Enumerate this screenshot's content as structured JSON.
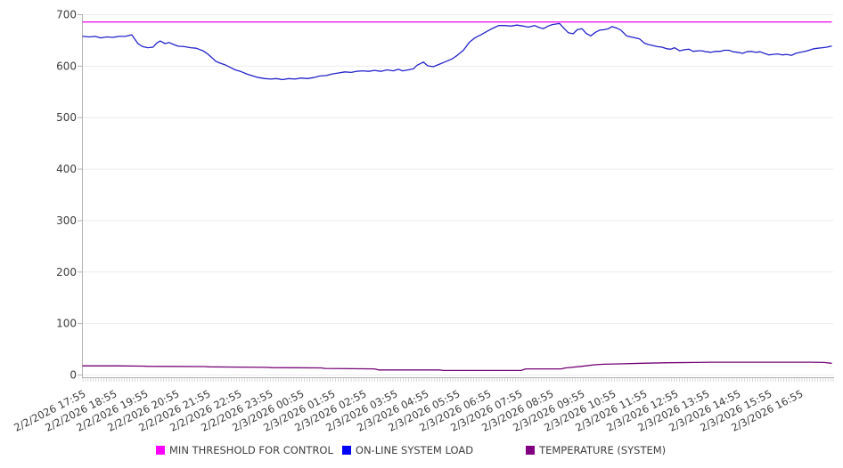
{
  "chart_data": {
    "type": "line",
    "title": "",
    "grid": "horizontal-only",
    "legend_position": "bottom",
    "x_axis": {
      "span_minutes": 1440,
      "minor_tick_count": 288,
      "labels": [
        "2/2/2026 17:55",
        "2/2/2026 18:55",
        "2/2/2026 19:55",
        "2/2/2026 20:55",
        "2/2/2026 21:55",
        "2/2/2026 22:55",
        "2/2/2026 23:55",
        "2/3/2026 00:55",
        "2/3/2026 01:55",
        "2/3/2026 02:55",
        "2/3/2026 03:55",
        "2/3/2026 04:55",
        "2/3/2026 05:55",
        "2/3/2026 06:55",
        "2/3/2026 07:55",
        "2/3/2026 08:55",
        "2/3/2026 09:55",
        "2/3/2026 10:55",
        "2/3/2026 11:55",
        "2/3/2026 12:55",
        "2/3/2026 13:55",
        "2/3/2026 14:55",
        "2/3/2026 15:55",
        "2/3/2026 16:55"
      ]
    },
    "y_axis": {
      "min": 0,
      "max": 700,
      "tick_step": 100,
      "tick_values": [
        700,
        600,
        500,
        400,
        300,
        200,
        100,
        0
      ]
    },
    "series": [
      {
        "name": "MIN THRESHOLD FOR CONTROL",
        "swatch_color": "#ff00ff",
        "line_color": "#ee1cee",
        "points": [
          [
            0,
            685
          ],
          [
            1440,
            685
          ]
        ]
      },
      {
        "name": "ON-LINE SYSTEM LOAD",
        "swatch_color": "#0000ff",
        "line_color": "#2323cb",
        "points": [
          [
            0,
            657
          ],
          [
            12,
            656
          ],
          [
            24,
            657
          ],
          [
            34,
            654
          ],
          [
            46,
            656
          ],
          [
            58,
            655
          ],
          [
            70,
            657
          ],
          [
            82,
            657
          ],
          [
            94,
            660
          ],
          [
            101,
            650
          ],
          [
            106,
            643
          ],
          [
            115,
            637
          ],
          [
            125,
            635
          ],
          [
            135,
            636
          ],
          [
            142,
            644
          ],
          [
            149,
            648
          ],
          [
            158,
            643
          ],
          [
            166,
            645
          ],
          [
            175,
            641
          ],
          [
            183,
            638
          ],
          [
            195,
            637
          ],
          [
            207,
            635
          ],
          [
            218,
            634
          ],
          [
            231,
            629
          ],
          [
            240,
            623
          ],
          [
            249,
            615
          ],
          [
            255,
            609
          ],
          [
            264,
            605
          ],
          [
            273,
            602
          ],
          [
            283,
            597
          ],
          [
            293,
            592
          ],
          [
            303,
            589
          ],
          [
            315,
            584
          ],
          [
            327,
            580
          ],
          [
            338,
            577
          ],
          [
            350,
            575
          ],
          [
            362,
            574
          ],
          [
            372,
            575
          ],
          [
            384,
            573
          ],
          [
            396,
            575
          ],
          [
            408,
            574
          ],
          [
            420,
            576
          ],
          [
            432,
            575
          ],
          [
            444,
            577
          ],
          [
            456,
            580
          ],
          [
            468,
            581
          ],
          [
            480,
            584
          ],
          [
            492,
            586
          ],
          [
            504,
            588
          ],
          [
            516,
            587
          ],
          [
            526,
            589
          ],
          [
            538,
            590
          ],
          [
            550,
            589
          ],
          [
            561,
            591
          ],
          [
            573,
            589
          ],
          [
            585,
            592
          ],
          [
            597,
            590
          ],
          [
            607,
            593
          ],
          [
            615,
            590
          ],
          [
            626,
            592
          ],
          [
            636,
            594
          ],
          [
            643,
            601
          ],
          [
            655,
            607
          ],
          [
            663,
            600
          ],
          [
            674,
            598
          ],
          [
            686,
            603
          ],
          [
            698,
            608
          ],
          [
            710,
            613
          ],
          [
            720,
            620
          ],
          [
            732,
            630
          ],
          [
            744,
            646
          ],
          [
            754,
            654
          ],
          [
            766,
            660
          ],
          [
            778,
            667
          ],
          [
            789,
            673
          ],
          [
            800,
            678
          ],
          [
            812,
            678
          ],
          [
            823,
            677
          ],
          [
            835,
            679
          ],
          [
            847,
            677
          ],
          [
            857,
            675
          ],
          [
            869,
            678
          ],
          [
            878,
            674
          ],
          [
            886,
            672
          ],
          [
            895,
            677
          ],
          [
            903,
            680
          ],
          [
            917,
            682
          ],
          [
            926,
            672
          ],
          [
            934,
            664
          ],
          [
            943,
            662
          ],
          [
            951,
            670
          ],
          [
            960,
            672
          ],
          [
            968,
            663
          ],
          [
            977,
            658
          ],
          [
            986,
            665
          ],
          [
            994,
            669
          ],
          [
            1003,
            670
          ],
          [
            1011,
            672
          ],
          [
            1018,
            676
          ],
          [
            1027,
            673
          ],
          [
            1035,
            669
          ],
          [
            1046,
            658
          ],
          [
            1054,
            656
          ],
          [
            1063,
            654
          ],
          [
            1071,
            652
          ],
          [
            1080,
            644
          ],
          [
            1088,
            641
          ],
          [
            1097,
            639
          ],
          [
            1105,
            637
          ],
          [
            1114,
            636
          ],
          [
            1123,
            633
          ],
          [
            1131,
            632
          ],
          [
            1138,
            635
          ],
          [
            1148,
            629
          ],
          [
            1157,
            631
          ],
          [
            1166,
            632
          ],
          [
            1174,
            628
          ],
          [
            1183,
            629
          ],
          [
            1191,
            629
          ],
          [
            1200,
            627
          ],
          [
            1208,
            626
          ],
          [
            1217,
            628
          ],
          [
            1226,
            628
          ],
          [
            1234,
            630
          ],
          [
            1243,
            630
          ],
          [
            1251,
            627
          ],
          [
            1260,
            626
          ],
          [
            1269,
            624
          ],
          [
            1277,
            627
          ],
          [
            1286,
            628
          ],
          [
            1294,
            626
          ],
          [
            1303,
            627
          ],
          [
            1311,
            624
          ],
          [
            1320,
            621
          ],
          [
            1328,
            622
          ],
          [
            1337,
            623
          ],
          [
            1346,
            621
          ],
          [
            1354,
            622
          ],
          [
            1363,
            620
          ],
          [
            1371,
            624
          ],
          [
            1380,
            626
          ],
          [
            1389,
            628
          ],
          [
            1397,
            630
          ],
          [
            1406,
            633
          ],
          [
            1414,
            634
          ],
          [
            1423,
            635
          ],
          [
            1431,
            636
          ],
          [
            1440,
            638
          ]
        ]
      },
      {
        "name": "TEMPERATURE (SYSTEM)",
        "swatch_color": "#800080",
        "line_color": "#740274",
        "points": [
          [
            0,
            17
          ],
          [
            63,
            17
          ],
          [
            115,
            16.5
          ],
          [
            123,
            16
          ],
          [
            235,
            15.5
          ],
          [
            243,
            15
          ],
          [
            355,
            14
          ],
          [
            363,
            13.5
          ],
          [
            458,
            13
          ],
          [
            466,
            12
          ],
          [
            561,
            11
          ],
          [
            569,
            9
          ],
          [
            686,
            9
          ],
          [
            693,
            8
          ],
          [
            843,
            8
          ],
          [
            852,
            11
          ],
          [
            920,
            11
          ],
          [
            929,
            13
          ],
          [
            960,
            16
          ],
          [
            984,
            19
          ],
          [
            1001,
            20
          ],
          [
            1040,
            21
          ],
          [
            1075,
            22
          ],
          [
            1126,
            23
          ],
          [
            1178,
            23.5
          ],
          [
            1212,
            24
          ],
          [
            1400,
            24
          ],
          [
            1426,
            23.5
          ],
          [
            1440,
            22
          ]
        ]
      }
    ]
  }
}
